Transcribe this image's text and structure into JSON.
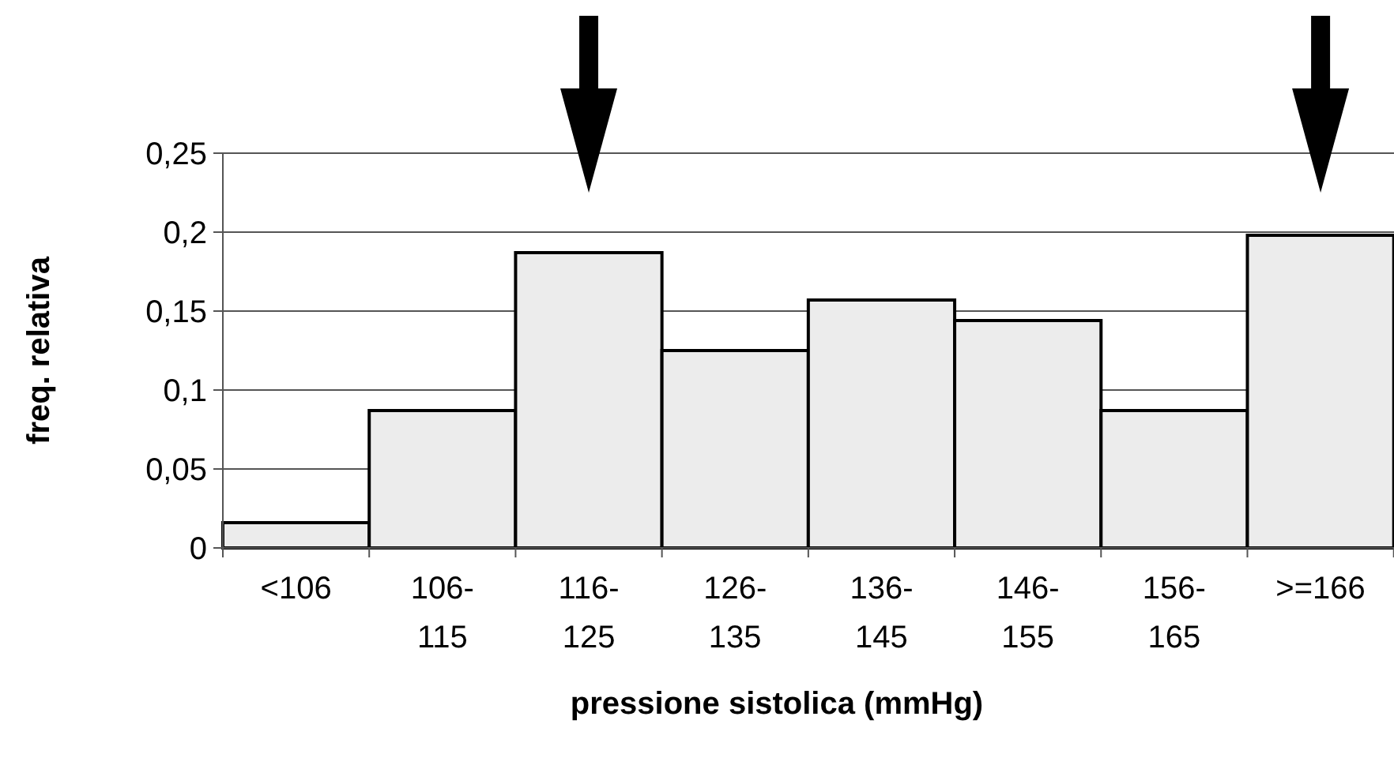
{
  "chart_data": {
    "type": "bar",
    "xlabel": "pressione sistolica (mmHg)",
    "ylabel": "freq. relativa",
    "categories": [
      "<106",
      "106-115",
      "116-125",
      "126-135",
      "136-145",
      "146-155",
      "156-165",
      ">=166"
    ],
    "values": [
      0.016,
      0.087,
      0.187,
      0.125,
      0.157,
      0.144,
      0.087,
      0.198
    ],
    "color": "#ececec",
    "ylim": [
      0,
      0.25
    ],
    "yticks": [
      {
        "value": 0,
        "label": "0"
      },
      {
        "value": 0.05,
        "label": "0,05"
      },
      {
        "value": 0.1,
        "label": "0,1"
      },
      {
        "value": 0.15,
        "label": "0,15"
      },
      {
        "value": 0.2,
        "label": "0,2"
      },
      {
        "value": 0.25,
        "label": "0,25"
      }
    ],
    "grid": "y"
  }
}
